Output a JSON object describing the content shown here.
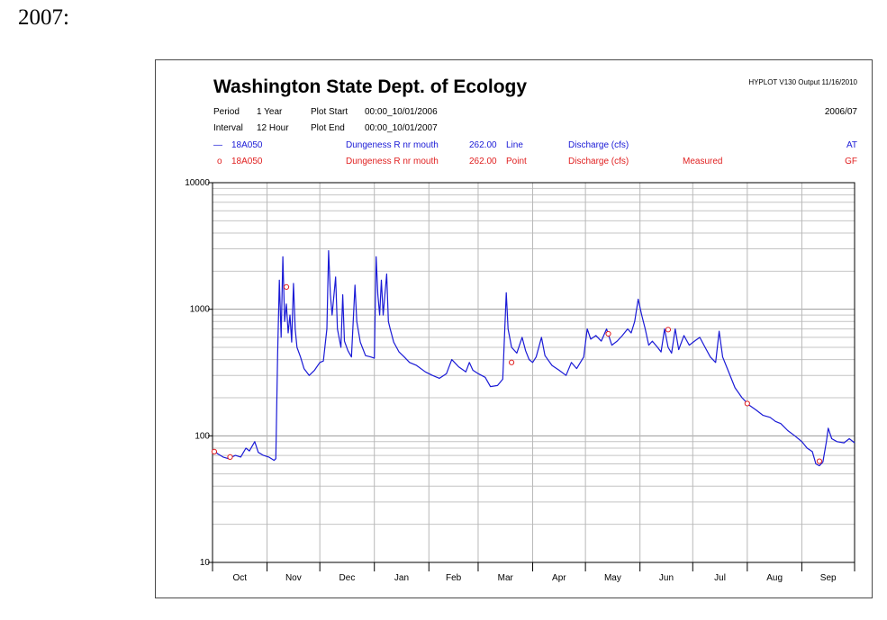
{
  "document": {
    "heading": "2007:"
  },
  "chart_data": {
    "type": "line",
    "title": "Washington State Dept. of Ecology",
    "header": {
      "software": "HYPLOT V130  Output 11/16/2010",
      "water_year": "2006/07",
      "period_label": "Period",
      "period_value": "1 Year",
      "interval_label": "Interval",
      "interval_value": "12 Hour",
      "plot_start_label": "Plot Start",
      "plot_start_value": "00:00_10/01/2006",
      "plot_end_label": "Plot End",
      "plot_end_value": "00:00_10/01/2007"
    },
    "legend": [
      {
        "symbol": "—",
        "station": "18A050",
        "site": "Dungeness R nr mouth",
        "code": "262.00",
        "style": "Line",
        "parameter": "Discharge (cfs)",
        "note": "",
        "flag": "AT",
        "color": "#1a1ad6"
      },
      {
        "symbol": "o",
        "station": "18A050",
        "site": "Dungeness R nr mouth",
        "code": "262.00",
        "style": "Point",
        "parameter": "Discharge (cfs)",
        "note": "Measured",
        "flag": "GF",
        "color": "#e02020"
      }
    ],
    "y_scale": "log",
    "ylim": [
      10,
      10000
    ],
    "y_ticks": [
      10,
      100,
      1000,
      10000
    ],
    "y_tick_labels": [
      "10",
      "100",
      "1000",
      "10000"
    ],
    "xlim": [
      "2006-10-01",
      "2007-10-01"
    ],
    "x_ticks": [
      "2006-10-01",
      "2006-11-01",
      "2006-12-01",
      "2007-01-01",
      "2007-02-01",
      "2007-03-01",
      "2007-04-01",
      "2007-05-01",
      "2007-06-01",
      "2007-07-01",
      "2007-08-01",
      "2007-09-01",
      "2007-10-01"
    ],
    "month_labels": [
      "Oct",
      "Nov",
      "Dec",
      "Jan",
      "Feb",
      "Mar",
      "Apr",
      "May",
      "Jun",
      "Jul",
      "Aug",
      "Sep"
    ],
    "grid": true,
    "series": [
      {
        "name": "18A050 Dungeness R nr mouth Discharge (cfs)",
        "color": "#1a1ad6",
        "points": [
          [
            "2006-10-01",
            78
          ],
          [
            "2006-10-04",
            72
          ],
          [
            "2006-10-07",
            68
          ],
          [
            "2006-10-10",
            66
          ],
          [
            "2006-10-14",
            70
          ],
          [
            "2006-10-17",
            68
          ],
          [
            "2006-10-20",
            80
          ],
          [
            "2006-10-22",
            76
          ],
          [
            "2006-10-25",
            90
          ],
          [
            "2006-10-27",
            74
          ],
          [
            "2006-10-30",
            70
          ],
          [
            "2006-11-02",
            68
          ],
          [
            "2006-11-05",
            64
          ],
          [
            "2006-11-06",
            66
          ],
          [
            "2006-11-07",
            440
          ],
          [
            "2006-11-08",
            1700
          ],
          [
            "2006-11-09",
            600
          ],
          [
            "2006-11-10",
            2600
          ],
          [
            "2006-11-11",
            800
          ],
          [
            "2006-11-12",
            1100
          ],
          [
            "2006-11-13",
            650
          ],
          [
            "2006-11-14",
            900
          ],
          [
            "2006-11-15",
            550
          ],
          [
            "2006-11-16",
            1600
          ],
          [
            "2006-11-17",
            700
          ],
          [
            "2006-11-18",
            500
          ],
          [
            "2006-11-20",
            420
          ],
          [
            "2006-11-22",
            340
          ],
          [
            "2006-11-25",
            300
          ],
          [
            "2006-11-28",
            330
          ],
          [
            "2006-12-01",
            380
          ],
          [
            "2006-12-03",
            390
          ],
          [
            "2006-12-05",
            700
          ],
          [
            "2006-12-06",
            2900
          ],
          [
            "2006-12-07",
            1300
          ],
          [
            "2006-12-08",
            900
          ],
          [
            "2006-12-10",
            1800
          ],
          [
            "2006-12-11",
            700
          ],
          [
            "2006-12-13",
            500
          ],
          [
            "2006-12-14",
            1300
          ],
          [
            "2006-12-15",
            560
          ],
          [
            "2006-12-17",
            470
          ],
          [
            "2006-12-19",
            420
          ],
          [
            "2006-12-21",
            1550
          ],
          [
            "2006-12-22",
            800
          ],
          [
            "2006-12-24",
            550
          ],
          [
            "2006-12-27",
            430
          ],
          [
            "2006-12-30",
            420
          ],
          [
            "2007-01-01",
            410
          ],
          [
            "2007-01-02",
            2600
          ],
          [
            "2007-01-03",
            1300
          ],
          [
            "2007-01-04",
            900
          ],
          [
            "2007-01-05",
            1700
          ],
          [
            "2007-01-06",
            900
          ],
          [
            "2007-01-08",
            1900
          ],
          [
            "2007-01-09",
            800
          ],
          [
            "2007-01-10",
            700
          ],
          [
            "2007-01-12",
            550
          ],
          [
            "2007-01-15",
            460
          ],
          [
            "2007-01-18",
            420
          ],
          [
            "2007-01-21",
            380
          ],
          [
            "2007-01-25",
            360
          ],
          [
            "2007-01-30",
            320
          ],
          [
            "2007-02-03",
            300
          ],
          [
            "2007-02-07",
            285
          ],
          [
            "2007-02-11",
            310
          ],
          [
            "2007-02-14",
            400
          ],
          [
            "2007-02-18",
            350
          ],
          [
            "2007-02-22",
            320
          ],
          [
            "2007-02-24",
            380
          ],
          [
            "2007-02-26",
            330
          ],
          [
            "2007-03-01",
            310
          ],
          [
            "2007-03-05",
            290
          ],
          [
            "2007-03-08",
            245
          ],
          [
            "2007-03-12",
            250
          ],
          [
            "2007-03-15",
            280
          ],
          [
            "2007-03-17",
            1350
          ],
          [
            "2007-03-18",
            700
          ],
          [
            "2007-03-20",
            500
          ],
          [
            "2007-03-23",
            450
          ],
          [
            "2007-03-26",
            600
          ],
          [
            "2007-03-28",
            470
          ],
          [
            "2007-03-30",
            400
          ],
          [
            "2007-04-01",
            380
          ],
          [
            "2007-04-03",
            420
          ],
          [
            "2007-04-06",
            600
          ],
          [
            "2007-04-08",
            430
          ],
          [
            "2007-04-12",
            360
          ],
          [
            "2007-04-16",
            330
          ],
          [
            "2007-04-20",
            300
          ],
          [
            "2007-04-23",
            380
          ],
          [
            "2007-04-26",
            340
          ],
          [
            "2007-04-30",
            420
          ],
          [
            "2007-05-02",
            700
          ],
          [
            "2007-05-04",
            580
          ],
          [
            "2007-05-07",
            620
          ],
          [
            "2007-05-10",
            560
          ],
          [
            "2007-05-13",
            700
          ],
          [
            "2007-05-16",
            520
          ],
          [
            "2007-05-19",
            560
          ],
          [
            "2007-05-22",
            620
          ],
          [
            "2007-05-25",
            700
          ],
          [
            "2007-05-27",
            650
          ],
          [
            "2007-05-29",
            800
          ],
          [
            "2007-05-31",
            1200
          ],
          [
            "2007-06-02",
            900
          ],
          [
            "2007-06-04",
            700
          ],
          [
            "2007-06-06",
            520
          ],
          [
            "2007-06-08",
            560
          ],
          [
            "2007-06-11",
            500
          ],
          [
            "2007-06-13",
            460
          ],
          [
            "2007-06-15",
            700
          ],
          [
            "2007-06-17",
            500
          ],
          [
            "2007-06-19",
            450
          ],
          [
            "2007-06-21",
            700
          ],
          [
            "2007-06-23",
            480
          ],
          [
            "2007-06-26",
            620
          ],
          [
            "2007-06-29",
            520
          ],
          [
            "2007-07-02",
            560
          ],
          [
            "2007-07-05",
            600
          ],
          [
            "2007-07-08",
            500
          ],
          [
            "2007-07-11",
            420
          ],
          [
            "2007-07-14",
            380
          ],
          [
            "2007-07-16",
            670
          ],
          [
            "2007-07-18",
            420
          ],
          [
            "2007-07-21",
            330
          ],
          [
            "2007-07-25",
            240
          ],
          [
            "2007-07-29",
            200
          ],
          [
            "2007-08-02",
            175
          ],
          [
            "2007-08-06",
            160
          ],
          [
            "2007-08-10",
            145
          ],
          [
            "2007-08-14",
            140
          ],
          [
            "2007-08-17",
            130
          ],
          [
            "2007-08-20",
            125
          ],
          [
            "2007-08-24",
            110
          ],
          [
            "2007-08-28",
            100
          ],
          [
            "2007-09-01",
            90
          ],
          [
            "2007-09-04",
            80
          ],
          [
            "2007-09-07",
            75
          ],
          [
            "2007-09-09",
            60
          ],
          [
            "2007-09-11",
            58
          ],
          [
            "2007-09-13",
            62
          ],
          [
            "2007-09-15",
            90
          ],
          [
            "2007-09-16",
            115
          ],
          [
            "2007-09-18",
            95
          ],
          [
            "2007-09-21",
            90
          ],
          [
            "2007-09-25",
            88
          ],
          [
            "2007-09-28",
            95
          ],
          [
            "2007-10-01",
            88
          ]
        ]
      },
      {
        "name": "18A050 Measured",
        "color": "#e02020",
        "marker": "circle",
        "points": [
          [
            "2006-10-02",
            75
          ],
          [
            "2006-10-11",
            68
          ],
          [
            "2006-11-12",
            1500
          ],
          [
            "2007-03-20",
            380
          ],
          [
            "2007-05-14",
            640
          ],
          [
            "2007-06-17",
            690
          ],
          [
            "2007-08-01",
            180
          ],
          [
            "2007-09-11",
            63
          ]
        ]
      }
    ]
  }
}
